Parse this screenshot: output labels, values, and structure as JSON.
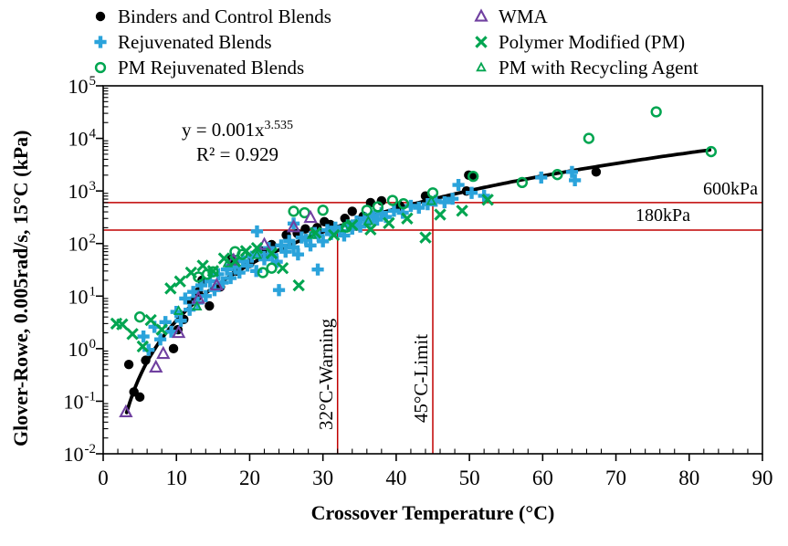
{
  "figure": {
    "background": "#ffffff",
    "axis_color": "#000000",
    "reference_color": "#c00000"
  },
  "legend": {
    "columns": [
      {
        "items": [
          {
            "label": "Binders and Control Blends",
            "marker": "filled-circle",
            "color": "#000000"
          },
          {
            "label": "Rejuvenated Blends",
            "marker": "plus",
            "color": "#2ba3db"
          },
          {
            "label": "PM Rejuvenated Blends",
            "marker": "open-circle",
            "color": "#00a550"
          }
        ]
      },
      {
        "items": [
          {
            "label": "WMA",
            "marker": "open-triangle",
            "color": "#7040a0"
          },
          {
            "label": "Polymer Modified (PM)",
            "marker": "x",
            "color": "#00a550"
          },
          {
            "label": "PM with Recycling Agent",
            "marker": "open-triangle-small",
            "color": "#00a550"
          }
        ]
      }
    ]
  },
  "annotations": {
    "equation_base": "y = 0.001x",
    "equation_exponent": "3.535",
    "r_squared": "R² = 0.929"
  },
  "chart_data": {
    "type": "scatter",
    "title": "",
    "xlabel": "Crossover Temperature (°C)",
    "ylabel": "Glover-Rowe, 0.005rad/s, 15°C (kPa)",
    "x_axis": {
      "label": "Crossover Temperature (°C)",
      "min": 0,
      "max": 90,
      "major_ticks": [
        0,
        10,
        20,
        30,
        40,
        50,
        60,
        70,
        80,
        90
      ],
      "minor_tick_step": 2
    },
    "y_axis": {
      "label": "Glover-Rowe, 0.005rad/s, 15°C (kPa)",
      "scale": "log",
      "tick_base": "10",
      "tick_exponents": [
        -2,
        -1,
        0,
        1,
        2,
        3,
        4,
        5
      ],
      "ylim": [
        "1e-2",
        "1e5"
      ]
    },
    "grid": false,
    "legend_position": "top",
    "reference_lines": {
      "horizontal": [
        {
          "value_kpa": 600,
          "label": "600kPa",
          "color": "#c00000"
        },
        {
          "value_kpa": 180,
          "label": "180kPa",
          "color": "#c00000"
        }
      ],
      "vertical": [
        {
          "value_c": 32,
          "label": "32°C-Warning",
          "extends_to_kpa": 180,
          "color": "#c00000"
        },
        {
          "value_c": 45,
          "label": "45°C-Limit",
          "extends_to_kpa": 600,
          "color": "#c00000"
        }
      ]
    },
    "fit": {
      "type": "power",
      "coefficient": 0.001,
      "exponent": 3.535,
      "equation": "y = 0.001x^3.535",
      "r2": 0.929,
      "x_start": 3.2,
      "x_end": 83,
      "color": "#000000"
    },
    "series": [
      {
        "name": "Binders and Control Blends",
        "marker": "filled-circle",
        "color": "#000000",
        "points": [
          [
            3.5,
            0.5
          ],
          [
            4.2,
            0.15
          ],
          [
            5,
            0.12
          ],
          [
            5.8,
            0.6
          ],
          [
            9.6,
            1.0
          ],
          [
            10.2,
            2.3
          ],
          [
            11,
            3.6
          ],
          [
            12,
            8
          ],
          [
            13,
            12
          ],
          [
            13.5,
            20
          ],
          [
            14.5,
            6.5
          ],
          [
            16,
            15
          ],
          [
            17.5,
            50
          ],
          [
            18.2,
            30
          ],
          [
            20,
            42
          ],
          [
            21.7,
            72
          ],
          [
            23,
            95
          ],
          [
            25,
            145
          ],
          [
            26.5,
            155
          ],
          [
            27.6,
            190
          ],
          [
            29.2,
            200
          ],
          [
            30.2,
            260
          ],
          [
            31,
            230
          ],
          [
            33,
            300
          ],
          [
            34,
            410
          ],
          [
            35.5,
            330
          ],
          [
            36.5,
            600
          ],
          [
            38,
            650
          ],
          [
            40.5,
            520
          ],
          [
            44,
            800
          ],
          [
            49.6,
            1000
          ],
          [
            49.9,
            2000
          ],
          [
            50.6,
            1850
          ],
          [
            67.3,
            2300
          ]
        ]
      },
      {
        "name": "Rejuvenated Blends",
        "marker": "plus",
        "color": "#2ba3db",
        "points": [
          [
            5.5,
            1.7
          ],
          [
            6.2,
            0.95
          ],
          [
            7,
            2.6
          ],
          [
            7.8,
            1.5
          ],
          [
            8.5,
            3.2
          ],
          [
            9.3,
            2.1
          ],
          [
            10,
            5
          ],
          [
            10.6,
            3.4
          ],
          [
            11.2,
            9
          ],
          [
            11.8,
            5.5
          ],
          [
            12.3,
            12
          ],
          [
            12.9,
            7.5
          ],
          [
            13.4,
            16
          ],
          [
            14,
            10
          ],
          [
            14.6,
            19
          ],
          [
            15.2,
            13
          ],
          [
            15.7,
            26
          ],
          [
            16.3,
            18
          ],
          [
            16.9,
            32
          ],
          [
            17.4,
            22
          ],
          [
            18,
            36
          ],
          [
            18.6,
            28
          ],
          [
            19.1,
            46
          ],
          [
            19.7,
            38
          ],
          [
            20.3,
            56
          ],
          [
            20.9,
            30
          ],
          [
            21.4,
            66
          ],
          [
            22,
            50
          ],
          [
            22.6,
            82
          ],
          [
            23.1,
            60
          ],
          [
            23.7,
            45
          ],
          [
            24.3,
            92
          ],
          [
            24.9,
            70
          ],
          [
            25.4,
            112
          ],
          [
            26,
            85
          ],
          [
            26.6,
            62
          ],
          [
            27.1,
            130
          ],
          [
            27.7,
            118
          ],
          [
            28.3,
            92
          ],
          [
            28.9,
            158
          ],
          [
            29.4,
            140
          ],
          [
            30,
            110
          ],
          [
            30.6,
            180
          ],
          [
            31.1,
            152
          ],
          [
            31.7,
            200
          ],
          [
            32.3,
            172
          ],
          [
            32.9,
            142
          ],
          [
            33.4,
            220
          ],
          [
            34,
            192
          ],
          [
            34.6,
            262
          ],
          [
            35.1,
            210
          ],
          [
            35.7,
            300
          ],
          [
            36.3,
            255
          ],
          [
            36.9,
            330
          ],
          [
            37.4,
            285
          ],
          [
            38,
            380
          ],
          [
            38.6,
            320
          ],
          [
            39.7,
            420
          ],
          [
            40.9,
            385
          ],
          [
            42,
            520
          ],
          [
            43.1,
            480
          ],
          [
            44.3,
            560
          ],
          [
            45.4,
            650
          ],
          [
            46.6,
            610
          ],
          [
            47.7,
            710
          ],
          [
            48.5,
            1300
          ],
          [
            50.3,
            920
          ],
          [
            52,
            810
          ],
          [
            59.8,
            1800
          ],
          [
            64,
            2300
          ],
          [
            64.4,
            1600
          ],
          [
            29.3,
            32
          ],
          [
            24,
            13
          ],
          [
            21,
            170
          ],
          [
            26,
            240
          ]
        ]
      },
      {
        "name": "PM Rejuvenated Blends",
        "marker": "open-circle",
        "color": "#00a550",
        "points": [
          [
            5,
            4
          ],
          [
            13,
            23
          ],
          [
            14.2,
            26
          ],
          [
            15,
            29
          ],
          [
            18,
            70
          ],
          [
            19,
            62
          ],
          [
            21.8,
            28
          ],
          [
            23,
            34
          ],
          [
            26,
            410
          ],
          [
            27.5,
            385
          ],
          [
            30,
            430
          ],
          [
            33.2,
            205
          ],
          [
            36,
            430
          ],
          [
            37.5,
            500
          ],
          [
            39.5,
            660
          ],
          [
            41,
            570
          ],
          [
            45,
            920
          ],
          [
            50.5,
            1900
          ],
          [
            57.2,
            1450
          ],
          [
            62,
            2050
          ],
          [
            66.3,
            10000
          ],
          [
            75.5,
            32000
          ],
          [
            83,
            5600
          ]
        ]
      },
      {
        "name": "WMA",
        "marker": "open-triangle",
        "color": "#7040a0",
        "points": [
          [
            3.1,
            0.062
          ],
          [
            7.2,
            0.44
          ],
          [
            8.2,
            0.8
          ],
          [
            10.3,
            2.0
          ],
          [
            13,
            9
          ],
          [
            15.5,
            16
          ],
          [
            17.8,
            48
          ],
          [
            22,
            95
          ],
          [
            26,
            205
          ],
          [
            28.3,
            310
          ]
        ]
      },
      {
        "name": "Polymer Modified (PM)",
        "marker": "x",
        "color": "#00a550",
        "points": [
          [
            1.8,
            3.0
          ],
          [
            2.6,
            2.9
          ],
          [
            4,
            1.9
          ],
          [
            5.4,
            1.1
          ],
          [
            6.5,
            3.5
          ],
          [
            8,
            2.3
          ],
          [
            9.2,
            14
          ],
          [
            10.5,
            19
          ],
          [
            12,
            28
          ],
          [
            13.6,
            38
          ],
          [
            15,
            30
          ],
          [
            16.5,
            52
          ],
          [
            18,
            46
          ],
          [
            19.5,
            72
          ],
          [
            21,
            82
          ],
          [
            23,
            65
          ],
          [
            24.5,
            34
          ],
          [
            26.7,
            16
          ],
          [
            29,
            160
          ],
          [
            31.5,
            145
          ],
          [
            34,
            225
          ],
          [
            36.5,
            185
          ],
          [
            39,
            245
          ],
          [
            41.5,
            300
          ],
          [
            44,
            130
          ],
          [
            46,
            355
          ],
          [
            49,
            420
          ],
          [
            52.5,
            680
          ]
        ]
      },
      {
        "name": "PM with Recycling Agent",
        "marker": "open-triangle-small",
        "color": "#00a550",
        "points": [
          [
            10.3,
            5.2
          ],
          [
            12.8,
            6.3
          ],
          [
            17,
            42
          ],
          [
            21,
            60
          ],
          [
            28.5,
            145
          ],
          [
            33,
            195
          ],
          [
            36.2,
            265
          ],
          [
            44.8,
            640
          ]
        ]
      }
    ]
  }
}
